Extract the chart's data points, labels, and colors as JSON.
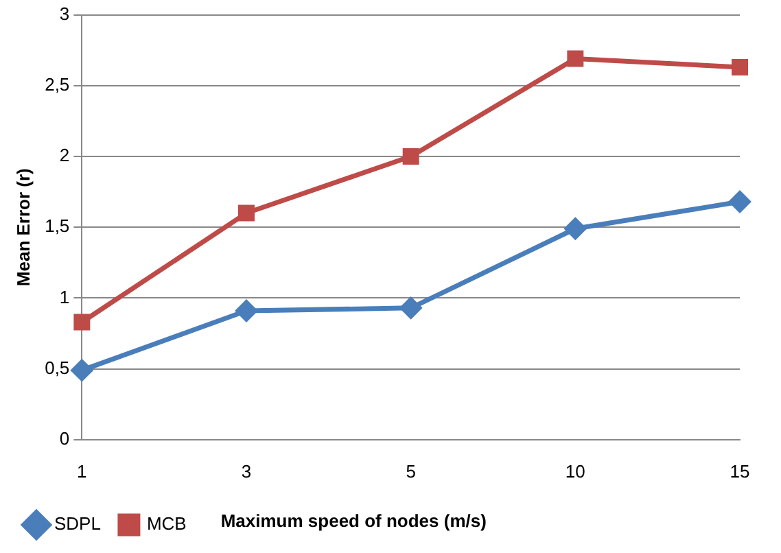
{
  "chart_data": {
    "type": "line",
    "xlabel": "Maximum speed of nodes (m/s)",
    "ylabel": "Mean Error (r)",
    "categories": [
      "1",
      "3",
      "5",
      "10",
      "15"
    ],
    "series": [
      {
        "name": "SDPL",
        "color": "#4a7ebb",
        "marker": "diamond",
        "values": [
          0.49,
          0.91,
          0.93,
          1.49,
          1.68
        ]
      },
      {
        "name": "MCB",
        "color": "#be4b48",
        "marker": "square",
        "values": [
          0.83,
          1.6,
          2.0,
          2.69,
          2.63
        ]
      }
    ],
    "ylim": [
      0,
      3
    ],
    "yticks": [
      0,
      {
        "value": 0.5,
        "label": "0,5"
      },
      1,
      {
        "value": 1.5,
        "label": "1,5"
      },
      2,
      {
        "value": 2.5,
        "label": "2,5"
      },
      3
    ],
    "grid": "y",
    "legend": "bottom left",
    "line_style": "solid"
  }
}
